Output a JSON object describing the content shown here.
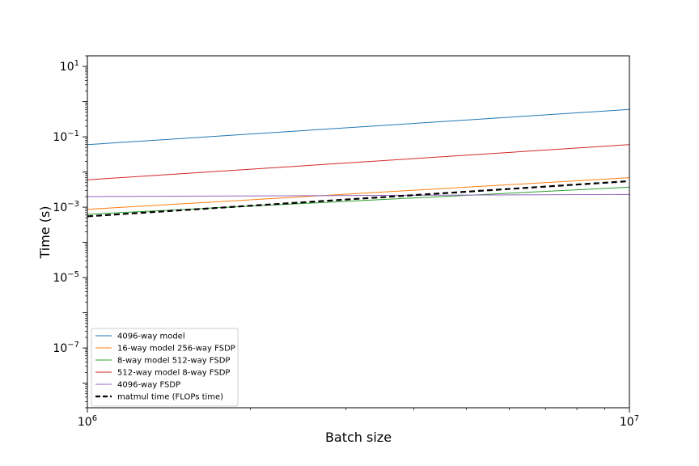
{
  "chart_data": {
    "type": "line",
    "title": "",
    "xlabel": "Batch size",
    "ylabel": "Time (s)",
    "xscale": "log",
    "yscale": "log",
    "xlim": [
      1000000,
      10000000
    ],
    "ylim": [
      2e-09,
      20
    ],
    "grid": false,
    "legend_position": "lower-left",
    "x_ticks": [
      {
        "value": 1000000,
        "base": "10",
        "exp": "6"
      },
      {
        "value": 10000000,
        "base": "10",
        "exp": "7"
      }
    ],
    "y_ticks": [
      {
        "value": 10,
        "base": "10",
        "exp": "1"
      },
      {
        "value": 0.1,
        "base": "10",
        "exp": "−1"
      },
      {
        "value": 0.001,
        "base": "10",
        "exp": "−3"
      },
      {
        "value": 1e-05,
        "base": "10",
        "exp": "−5"
      },
      {
        "value": 1e-07,
        "base": "10",
        "exp": "−7"
      }
    ],
    "series": [
      {
        "name": "4096-way model",
        "color": "#1f77b4",
        "dashed": false,
        "x": [
          1000000,
          10000000
        ],
        "y": [
          0.06,
          0.6
        ]
      },
      {
        "name": "16-way model 256-way FSDP",
        "color": "#ff7f0e",
        "dashed": false,
        "x": [
          1000000,
          10000000
        ],
        "y": [
          0.00087,
          0.0069
        ]
      },
      {
        "name": "8-way model 512-way FSDP",
        "color": "#2ca02c",
        "dashed": false,
        "x": [
          1000000,
          10000000
        ],
        "y": [
          0.00063,
          0.0037
        ]
      },
      {
        "name": "512-way model 8-way FSDP",
        "color": "#d62728",
        "dashed": false,
        "x": [
          1000000,
          10000000
        ],
        "y": [
          0.006,
          0.06
        ]
      },
      {
        "name": "4096-way FSDP",
        "color": "#9467bd",
        "dashed": false,
        "x": [
          1000000,
          10000000
        ],
        "y": [
          0.002,
          0.0023
        ]
      },
      {
        "name": "matmul time (FLOPs time)",
        "color": "#000000",
        "dashed": true,
        "x": [
          1000000,
          10000000
        ],
        "y": [
          0.00055,
          0.0055
        ]
      }
    ]
  }
}
